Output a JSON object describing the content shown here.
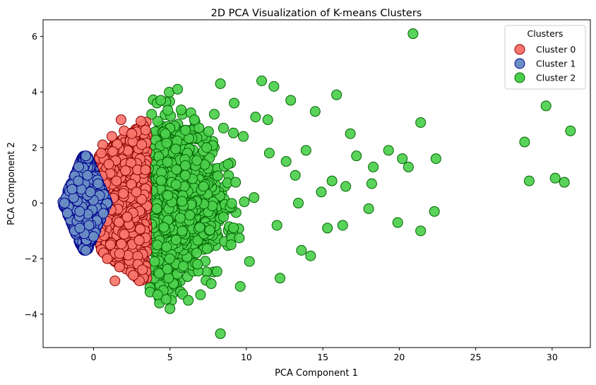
{
  "chart_data": {
    "type": "scatter",
    "title": "2D PCA Visualization of K-means Clusters",
    "xlabel": "PCA Component 1",
    "ylabel": "PCA Component 2",
    "xlim": [
      -3.3,
      32.5
    ],
    "ylim": [
      -5.2,
      6.6
    ],
    "xticks": [
      0,
      5,
      10,
      15,
      20,
      25,
      30
    ],
    "yticks": [
      -4,
      -2,
      0,
      2,
      4,
      6
    ],
    "tick_labels_x": [
      "0",
      "5",
      "10",
      "15",
      "20",
      "25",
      "30"
    ],
    "tick_labels_y": [
      "−4",
      "−2",
      "0",
      "2",
      "4",
      "6"
    ],
    "grid": false,
    "legend": {
      "title": "Clusters",
      "placement": "top-right"
    },
    "series": [
      {
        "name": "Cluster 0",
        "color": "#f8766d",
        "edge": "#8b0000",
        "x_range": [
          0.3,
          3.6
        ],
        "y_range": [
          -2.8,
          3.0
        ],
        "points": [
          [
            1.8,
            3.0
          ],
          [
            3.1,
            2.95
          ],
          [
            0.6,
            2.1
          ],
          [
            1.2,
            2.4
          ],
          [
            2.0,
            2.6
          ],
          [
            2.5,
            2.5
          ],
          [
            1.0,
            1.4
          ],
          [
            1.5,
            0.8
          ],
          [
            2.2,
            -0.5
          ],
          [
            3.0,
            -2.8
          ],
          [
            2.9,
            -2.2
          ],
          [
            1.7,
            -2.3
          ],
          [
            2.6,
            -2.6
          ],
          [
            1.1,
            -1.5
          ],
          [
            0.9,
            -2.0
          ],
          [
            1.4,
            -2.8
          ],
          [
            3.2,
            -2.4
          ],
          [
            0.5,
            1.8
          ],
          [
            3.4,
            1.2
          ],
          [
            2.8,
            0.4
          ]
        ]
      },
      {
        "name": "Cluster 1",
        "color": "#6a8fc4",
        "edge": "#00008b",
        "x_range": [
          -1.9,
          0.5
        ],
        "y_range": [
          -1.7,
          1.7
        ],
        "points": [
          [
            -1.9,
            0.0
          ],
          [
            -0.5,
            1.7
          ],
          [
            -0.5,
            -1.7
          ],
          [
            -1.3,
            0.2
          ],
          [
            -0.8,
            0.5
          ],
          [
            -0.3,
            -0.8
          ],
          [
            -0.9,
            -0.3
          ],
          [
            -1.4,
            0.5
          ],
          [
            -0.4,
            1.0
          ],
          [
            -1.0,
            0.8
          ],
          [
            -0.2,
            0.4
          ],
          [
            0.0,
            -1.2
          ],
          [
            -0.6,
            -1.1
          ],
          [
            0.3,
            0.7
          ],
          [
            -0.9,
            -0.9
          ]
        ]
      },
      {
        "name": "Cluster 2",
        "color": "#4ccf4c",
        "edge": "#006400",
        "x_range": [
          3.3,
          31.2
        ],
        "y_range": [
          -4.7,
          6.1
        ],
        "points": [
          [
            20.9,
            6.1
          ],
          [
            29.6,
            3.5
          ],
          [
            31.2,
            2.6
          ],
          [
            21.4,
            2.9
          ],
          [
            28.2,
            2.2
          ],
          [
            28.5,
            0.8
          ],
          [
            30.2,
            0.9
          ],
          [
            30.8,
            0.75
          ],
          [
            22.4,
            1.6
          ],
          [
            22.3,
            -0.3
          ],
          [
            21.4,
            -1.0
          ],
          [
            20.6,
            1.3
          ],
          [
            20.2,
            1.6
          ],
          [
            19.3,
            1.9
          ],
          [
            19.9,
            -0.7
          ],
          [
            18.3,
            1.3
          ],
          [
            18.2,
            0.7
          ],
          [
            18.0,
            -0.2
          ],
          [
            17.2,
            1.7
          ],
          [
            16.8,
            2.5
          ],
          [
            16.5,
            0.6
          ],
          [
            16.3,
            -0.8
          ],
          [
            15.9,
            3.9
          ],
          [
            15.6,
            0.8
          ],
          [
            15.3,
            -0.9
          ],
          [
            14.9,
            0.4
          ],
          [
            14.5,
            3.3
          ],
          [
            14.2,
            -1.9
          ],
          [
            13.9,
            1.9
          ],
          [
            13.6,
            -1.7
          ],
          [
            13.4,
            0.0
          ],
          [
            12.9,
            3.7
          ],
          [
            12.6,
            1.5
          ],
          [
            12.2,
            -2.7
          ],
          [
            11.8,
            4.2
          ],
          [
            11.4,
            3.0
          ],
          [
            11.0,
            4.4
          ],
          [
            10.6,
            3.1
          ],
          [
            10.2,
            -2.1
          ],
          [
            9.8,
            2.4
          ],
          [
            9.6,
            -3.0
          ],
          [
            9.2,
            3.6
          ],
          [
            8.8,
            1.4
          ],
          [
            8.3,
            -4.7
          ],
          [
            8.3,
            4.3
          ],
          [
            7.9,
            3.2
          ],
          [
            7.7,
            -2.9
          ],
          [
            7.4,
            2.0
          ],
          [
            7.0,
            -3.3
          ],
          [
            6.6,
            3.0
          ],
          [
            6.2,
            -3.5
          ],
          [
            6.0,
            1.0
          ],
          [
            5.5,
            4.1
          ],
          [
            5.0,
            -3.8
          ],
          [
            4.7,
            2.5
          ],
          [
            4.4,
            3.7
          ],
          [
            4.0,
            -2.1
          ],
          [
            3.8,
            3.2
          ],
          [
            3.5,
            0.5
          ],
          [
            3.4,
            -1.6
          ],
          [
            4.2,
            -3.3
          ],
          [
            5.8,
            -1.0
          ],
          [
            7.2,
            0.6
          ],
          [
            9.0,
            -1.5
          ],
          [
            10.5,
            0.2
          ],
          [
            12.0,
            -0.8
          ],
          [
            13.2,
            1.0
          ],
          [
            11.5,
            1.8
          ],
          [
            8.5,
            2.7
          ],
          [
            6.8,
            -2.2
          ]
        ]
      }
    ]
  }
}
